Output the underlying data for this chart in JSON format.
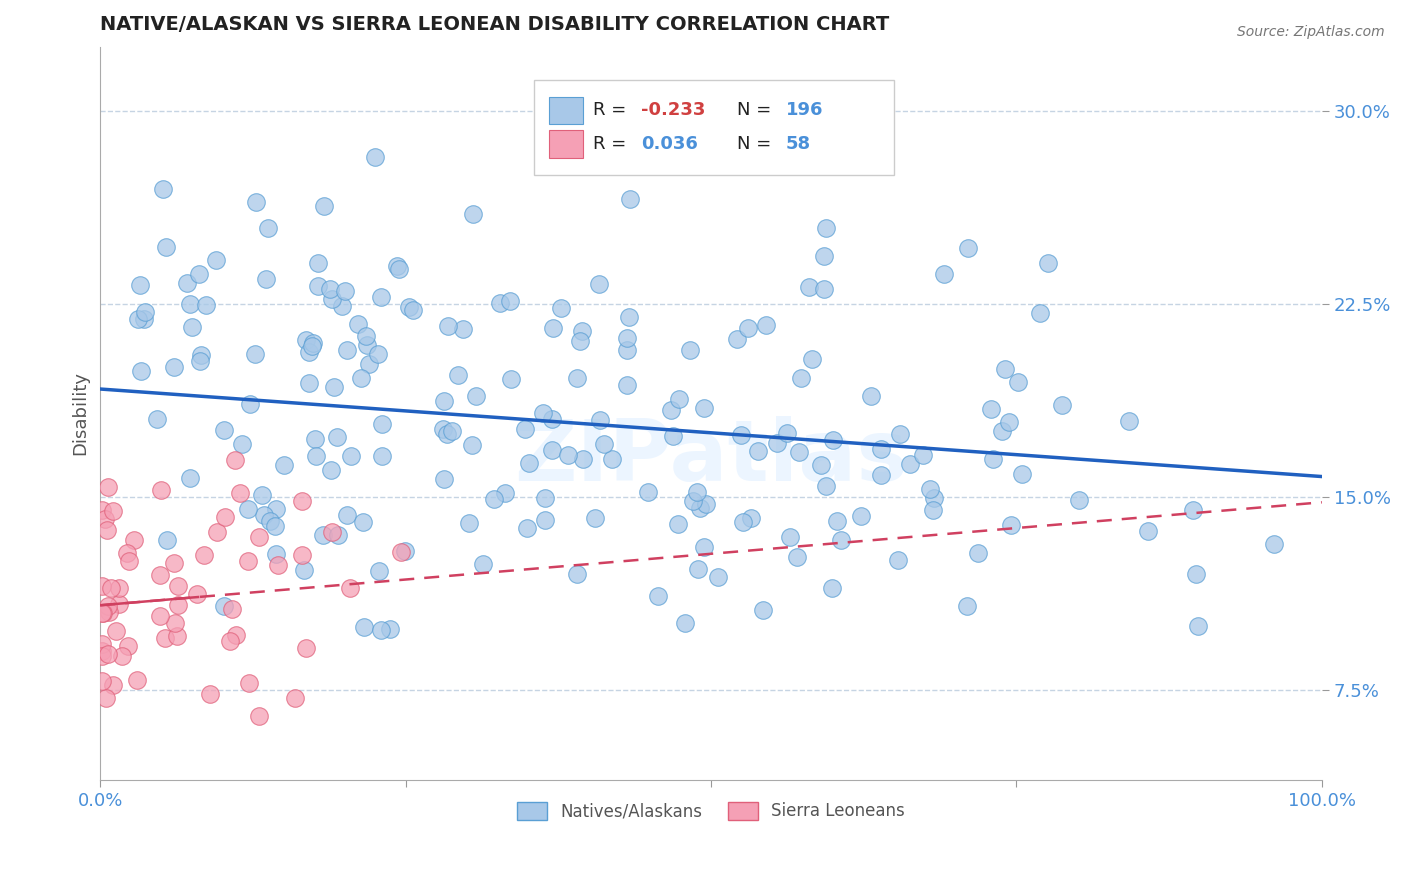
{
  "title": "NATIVE/ALASKAN VS SIERRA LEONEAN DISABILITY CORRELATION CHART",
  "source_text": "Source: ZipAtlas.com",
  "ylabel": "Disability",
  "xlim": [
    0,
    1.0
  ],
  "ylim": [
    0.04,
    0.325
  ],
  "xticks": [
    0.0,
    0.25,
    0.5,
    0.75,
    1.0
  ],
  "xticklabels": [
    "0.0%",
    "",
    "",
    "",
    "100.0%"
  ],
  "yticks": [
    0.075,
    0.15,
    0.225,
    0.3
  ],
  "yticklabels": [
    "7.5%",
    "15.0%",
    "22.5%",
    "30.0%"
  ],
  "blue_color": "#A8C8E8",
  "blue_edge": "#5A9FD4",
  "pink_color": "#F5A0B5",
  "pink_edge": "#E0607A",
  "trend_blue_color": "#2060C0",
  "trend_pink_color": "#D04060",
  "blue_R": "-0.233",
  "blue_N": "196",
  "pink_R": "0.036",
  "pink_N": "58",
  "blue_trend_x0": 0.0,
  "blue_trend_y0": 0.192,
  "blue_trend_x1": 1.0,
  "blue_trend_y1": 0.158,
  "pink_trend_x0": 0.0,
  "pink_trend_y0": 0.108,
  "pink_trend_x1": 1.0,
  "pink_trend_y1": 0.148,
  "watermark": "ZIPatlas",
  "grid_color": "#C0D0E0",
  "title_color": "#222222",
  "tick_color": "#4A90D9",
  "ylabel_color": "#555555",
  "source_color": "#777777",
  "legend_bottom_color": "#555555"
}
